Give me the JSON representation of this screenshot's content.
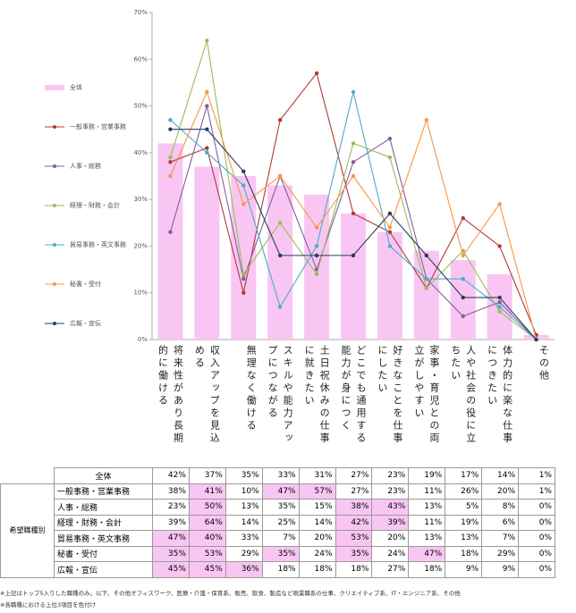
{
  "chart_data": {
    "type": "bar-line",
    "categories": [
      "将来性があり長期的に働ける",
      "収入アップを見込める",
      "無理なく働ける",
      "スキルや能力アップにつながる",
      "土日祝休みの仕事に就きたい",
      "どこでも通用する能力が身につく",
      "好きなことを仕事にしたい",
      "家事・育児との両立がしやすい",
      "人や社会の役に立ちたい",
      "体力的に楽な仕事につきたい",
      "その他"
    ],
    "ylim": [
      0,
      70
    ],
    "yticks": [
      {
        "value": 0,
        "label": "0%"
      },
      {
        "value": 10,
        "label": "10%"
      },
      {
        "value": 20,
        "label": "20%"
      },
      {
        "value": 30,
        "label": "30%"
      },
      {
        "value": 40,
        "label": "40%"
      },
      {
        "value": 50,
        "label": "50%"
      },
      {
        "value": 60,
        "label": "60%"
      },
      {
        "value": 70,
        "label": "70%"
      }
    ],
    "grid": false,
    "series": [
      {
        "name": "全体",
        "kind": "bar",
        "color": "#f9c6f3",
        "values": [
          42,
          37,
          35,
          33,
          31,
          27,
          23,
          19,
          17,
          14,
          1
        ],
        "value_labels": [
          "42%",
          "37%",
          "35%",
          "33%",
          "31%",
          "27%",
          "23%",
          "19%",
          "17%",
          "14%",
          "1%"
        ],
        "highlight": []
      },
      {
        "name": "一般事務・営業事務",
        "kind": "line",
        "color": "#b03a3a",
        "values": [
          38,
          41,
          10,
          47,
          57,
          27,
          23,
          11,
          26,
          20,
          1
        ],
        "value_labels": [
          "38%",
          "41%",
          "10%",
          "47%",
          "57%",
          "27%",
          "23%",
          "11%",
          "26%",
          "20%",
          "1%"
        ],
        "highlight": [
          1,
          3,
          4
        ]
      },
      {
        "name": "人事・総務",
        "kind": "line",
        "color": "#7f5f9f",
        "values": [
          23,
          50,
          13,
          35,
          15,
          38,
          43,
          13,
          5,
          8,
          0
        ],
        "value_labels": [
          "23%",
          "50%",
          "13%",
          "35%",
          "15%",
          "38%",
          "43%",
          "13%",
          "5%",
          "8%",
          "0%"
        ],
        "highlight": [
          1,
          5,
          6
        ]
      },
      {
        "name": "経理・財務・会計",
        "kind": "line",
        "color": "#9bbb59",
        "values": [
          39,
          64,
          14,
          25,
          14,
          42,
          39,
          11,
          19,
          6,
          0
        ],
        "value_labels": [
          "39%",
          "64%",
          "14%",
          "25%",
          "14%",
          "42%",
          "39%",
          "11%",
          "19%",
          "6%",
          "0%"
        ],
        "highlight": [
          1,
          5,
          6
        ]
      },
      {
        "name": "貿易事務・英文事務",
        "kind": "line",
        "color": "#4bacc6",
        "values": [
          47,
          40,
          33,
          7,
          20,
          53,
          20,
          13,
          13,
          7,
          0
        ],
        "value_labels": [
          "47%",
          "40%",
          "33%",
          "7%",
          "20%",
          "53%",
          "20%",
          "13%",
          "13%",
          "7%",
          "0%"
        ],
        "highlight": [
          0,
          1,
          5
        ]
      },
      {
        "name": "秘書・受付",
        "kind": "line",
        "color": "#f79646",
        "values": [
          35,
          53,
          29,
          35,
          24,
          35,
          24,
          47,
          18,
          29,
          0
        ],
        "value_labels": [
          "35%",
          "53%",
          "29%",
          "35%",
          "24%",
          "35%",
          "24%",
          "47%",
          "18%",
          "29%",
          "0%"
        ],
        "highlight": [
          0,
          1,
          3,
          5,
          7
        ]
      },
      {
        "name": "広報・宣伝",
        "kind": "line",
        "color": "#243f60",
        "values": [
          45,
          45,
          36,
          18,
          18,
          18,
          27,
          18,
          9,
          9,
          0
        ],
        "value_labels": [
          "45%",
          "45%",
          "36%",
          "18%",
          "18%",
          "18%",
          "27%",
          "18%",
          "9%",
          "9%",
          "0%"
        ],
        "highlight": [
          0,
          1,
          2
        ]
      }
    ],
    "table_group_label": "希望職種別",
    "footnotes": [
      "※上記はトップ5入りした職種のみ。以下、その他オフィスワーク、医療・介護・保育系、販売、飲食、製造など現業職系の仕事、クリエイティブ系、IT・エンジニア系、その他",
      "※各職種における上位3項目を色付け"
    ]
  }
}
